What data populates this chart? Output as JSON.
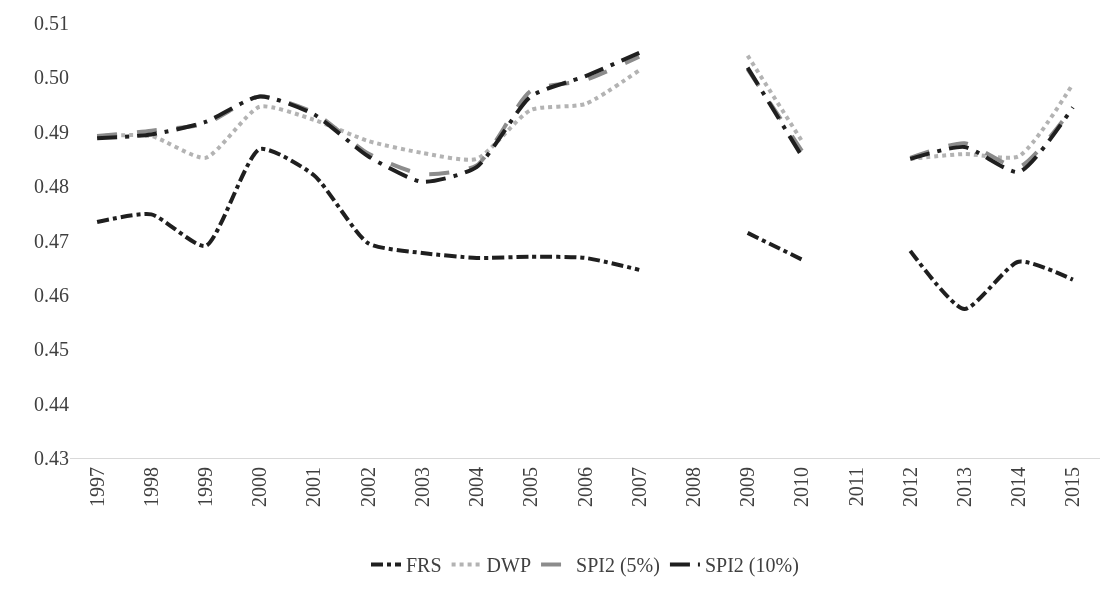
{
  "chart_data": {
    "type": "line",
    "categories": [
      "1997",
      "1998",
      "1999",
      "2000",
      "2001",
      "2002",
      "2003",
      "2004",
      "2005",
      "2006",
      "2007",
      "2008",
      "2009",
      "2010",
      "2011",
      "2012",
      "2013",
      "2014",
      "2015"
    ],
    "series": [
      {
        "name": "FRS",
        "color": "#1f1f1f",
        "line_style": "dashdot",
        "values": [
          0.4734,
          0.4748,
          0.469,
          0.4868,
          0.482,
          0.4695,
          0.4677,
          0.4668,
          0.467,
          0.4668,
          0.4646,
          null,
          0.4714,
          0.4665,
          null,
          0.4681,
          0.4574,
          0.4661,
          0.4628
        ]
      },
      {
        "name": "DWP",
        "color": "#b3b3b3",
        "line_style": "dotted",
        "values": [
          0.4892,
          0.4892,
          0.4852,
          0.4946,
          0.4922,
          0.4883,
          0.4861,
          0.485,
          0.494,
          0.4951,
          0.5013,
          null,
          0.504,
          0.4883,
          null,
          0.485,
          0.4859,
          0.4855,
          0.4988
        ]
      },
      {
        "name": "SPI2 (5%)",
        "color": "#8c8c8c",
        "line_style": "dashed",
        "values": [
          0.4892,
          0.4902,
          0.4915,
          0.4965,
          0.4935,
          0.486,
          0.4822,
          0.4838,
          0.4975,
          0.4995,
          0.5038,
          null,
          0.5015,
          0.4865,
          null,
          0.4852,
          0.4879,
          0.4835,
          0.4945
        ]
      },
      {
        "name": "SPI2 (10%)",
        "color": "#1f1f1f",
        "line_style": "longdashdot",
        "values": [
          0.4888,
          0.4895,
          0.4918,
          0.4965,
          0.4932,
          0.4855,
          0.4808,
          0.4835,
          0.4965,
          0.5002,
          0.5045,
          null,
          0.5018,
          0.4855,
          null,
          0.485,
          0.4872,
          0.4826,
          0.4945
        ]
      }
    ],
    "ylim": [
      0.43,
      0.51
    ],
    "yticks": [
      0.43,
      0.44,
      0.45,
      0.46,
      0.47,
      0.48,
      0.49,
      {
        "value": 0.5,
        "label": "0.50"
      },
      0.51
    ],
    "grid": false,
    "legend": "bottom",
    "marker": "none"
  }
}
